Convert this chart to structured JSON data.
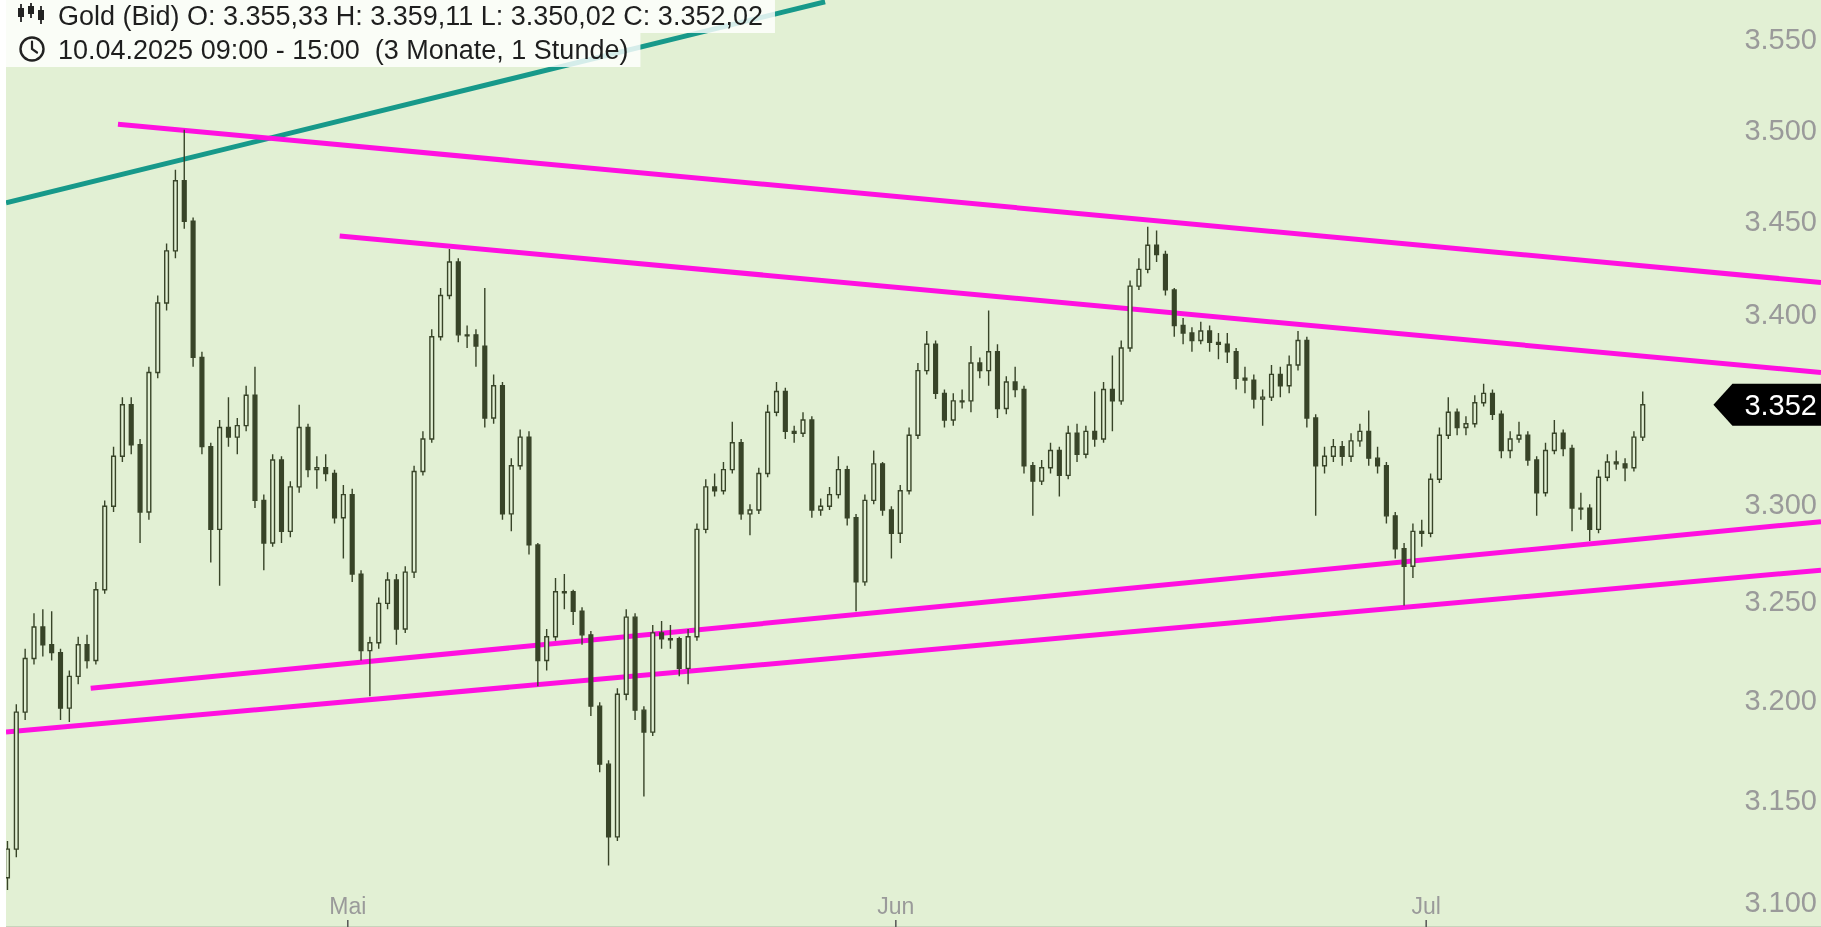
{
  "chart_data": {
    "type": "candlestick",
    "title": "Gold (Bid) O: 3.355,33 H: 3.359,11 L: 3.350,02 C: 3.352,02",
    "subtitle": "10.04.2025 09:00 - 15:00  (3 Monate, 1 Stunde)",
    "color": "#384428",
    "log": true,
    "xlim": [
      "2025-04-11T16:00",
      "2025-07-23T08:00"
    ],
    "xticks": [
      {
        "value": "2025-05-01",
        "label": "Mai"
      },
      {
        "value": "2025-06-01",
        "label": "Jun"
      },
      {
        "value": "2025-07-01",
        "label": "Jul"
      }
    ],
    "ylim": [
      3088,
      3572
    ],
    "yticks": [
      {
        "value": 3100,
        "label": "3.100"
      },
      {
        "value": 3150,
        "label": "3.150"
      },
      {
        "value": 3200,
        "label": "3.200"
      },
      {
        "value": 3250,
        "label": "3.250"
      },
      {
        "value": 3300,
        "label": "3.300"
      },
      {
        "value": 3400,
        "label": "3.400"
      },
      {
        "value": 3450,
        "label": "3.450"
      },
      {
        "value": 3500,
        "label": "3.500"
      },
      {
        "value": 3550,
        "label": "3.550"
      }
    ],
    "x": [
      "2025-04-11T18:00",
      "2025-04-12T06:00",
      "2025-04-12T18:00",
      "2025-04-13T06:00",
      "2025-04-13T18:00",
      "2025-04-14T06:00",
      "2025-04-14T18:00",
      "2025-04-15T06:00",
      "2025-04-15T18:00",
      "2025-04-16T06:00",
      "2025-04-16T18:00",
      "2025-04-17T06:00",
      "2025-04-17T18:00",
      "2025-04-18T06:00",
      "2025-04-18T18:00",
      "2025-04-19T06:00",
      "2025-04-19T18:00",
      "2025-04-20T06:00",
      "2025-04-20T18:00",
      "2025-04-21T06:00",
      "2025-04-21T18:00",
      "2025-04-22T06:00",
      "2025-04-22T18:00",
      "2025-04-23T06:00",
      "2025-04-23T18:00",
      "2025-04-24T06:00",
      "2025-04-24T18:00",
      "2025-04-25T06:00",
      "2025-04-25T18:00",
      "2025-04-26T06:00",
      "2025-04-26T18:00",
      "2025-04-27T06:00",
      "2025-04-27T18:00",
      "2025-04-28T06:00",
      "2025-04-28T18:00",
      "2025-04-29T06:00",
      "2025-04-29T18:00",
      "2025-04-30T06:00",
      "2025-04-30T18:00",
      "2025-05-01T06:00",
      "2025-05-01T18:00",
      "2025-05-02T06:00",
      "2025-05-02T18:00",
      "2025-05-03T06:00",
      "2025-05-03T18:00",
      "2025-05-04T06:00",
      "2025-05-04T18:00",
      "2025-05-05T06:00",
      "2025-05-05T18:00",
      "2025-05-06T06:00",
      "2025-05-06T18:00",
      "2025-05-07T06:00",
      "2025-05-07T18:00",
      "2025-05-08T06:00",
      "2025-05-08T18:00",
      "2025-05-09T06:00",
      "2025-05-09T18:00",
      "2025-05-10T06:00",
      "2025-05-10T18:00",
      "2025-05-11T06:00",
      "2025-05-11T18:00",
      "2025-05-12T06:00",
      "2025-05-12T18:00",
      "2025-05-13T06:00",
      "2025-05-13T18:00",
      "2025-05-14T06:00",
      "2025-05-14T18:00",
      "2025-05-15T06:00",
      "2025-05-15T18:00",
      "2025-05-16T06:00",
      "2025-05-16T18:00",
      "2025-05-17T06:00",
      "2025-05-17T18:00",
      "2025-05-18T06:00",
      "2025-05-18T18:00",
      "2025-05-19T06:00",
      "2025-05-19T18:00",
      "2025-05-20T06:00",
      "2025-05-20T18:00",
      "2025-05-21T06:00",
      "2025-05-21T18:00",
      "2025-05-22T06:00",
      "2025-05-22T18:00",
      "2025-05-23T06:00",
      "2025-05-23T18:00",
      "2025-05-24T06:00",
      "2025-05-24T18:00",
      "2025-05-25T06:00",
      "2025-05-25T18:00",
      "2025-05-26T06:00",
      "2025-05-26T18:00",
      "2025-05-27T06:00",
      "2025-05-27T18:00",
      "2025-05-28T06:00",
      "2025-05-28T18:00",
      "2025-05-29T06:00",
      "2025-05-29T18:00",
      "2025-05-30T06:00",
      "2025-05-30T18:00",
      "2025-05-31T06:00",
      "2025-05-31T18:00",
      "2025-06-01T06:00",
      "2025-06-01T18:00",
      "2025-06-02T06:00",
      "2025-06-02T18:00",
      "2025-06-03T06:00",
      "2025-06-03T18:00",
      "2025-06-04T06:00",
      "2025-06-04T18:00",
      "2025-06-05T06:00",
      "2025-06-05T18:00",
      "2025-06-06T06:00",
      "2025-06-06T18:00",
      "2025-06-07T06:00",
      "2025-06-07T18:00",
      "2025-06-08T06:00",
      "2025-06-08T18:00",
      "2025-06-09T06:00",
      "2025-06-09T18:00",
      "2025-06-10T06:00",
      "2025-06-10T18:00",
      "2025-06-11T06:00",
      "2025-06-11T18:00",
      "2025-06-12T06:00",
      "2025-06-12T18:00",
      "2025-06-13T06:00",
      "2025-06-13T18:00",
      "2025-06-14T06:00",
      "2025-06-14T18:00",
      "2025-06-15T06:00",
      "2025-06-15T18:00",
      "2025-06-16T06:00",
      "2025-06-16T18:00",
      "2025-06-17T06:00",
      "2025-06-17T18:00",
      "2025-06-18T06:00",
      "2025-06-18T18:00",
      "2025-06-19T06:00",
      "2025-06-19T18:00",
      "2025-06-20T06:00",
      "2025-06-20T18:00",
      "2025-06-21T06:00",
      "2025-06-21T18:00",
      "2025-06-22T06:00",
      "2025-06-22T18:00",
      "2025-06-23T06:00",
      "2025-06-23T18:00",
      "2025-06-24T06:00",
      "2025-06-24T18:00",
      "2025-06-25T06:00",
      "2025-06-25T18:00",
      "2025-06-26T06:00",
      "2025-06-26T18:00",
      "2025-06-27T06:00",
      "2025-06-27T18:00",
      "2025-06-28T06:00",
      "2025-06-28T18:00",
      "2025-06-29T06:00",
      "2025-06-29T18:00",
      "2025-06-30T06:00",
      "2025-06-30T18:00",
      "2025-07-01T06:00",
      "2025-07-01T18:00",
      "2025-07-02T06:00",
      "2025-07-02T18:00",
      "2025-07-03T06:00",
      "2025-07-03T18:00",
      "2025-07-04T06:00",
      "2025-07-04T18:00",
      "2025-07-05T06:00",
      "2025-07-05T18:00",
      "2025-07-06T06:00",
      "2025-07-06T18:00",
      "2025-07-07T06:00",
      "2025-07-07T18:00",
      "2025-07-08T06:00",
      "2025-07-08T18:00",
      "2025-07-09T06:00",
      "2025-07-09T18:00",
      "2025-07-10T06:00",
      "2025-07-10T18:00",
      "2025-07-11T06:00",
      "2025-07-11T18:00",
      "2025-07-12T06:00",
      "2025-07-12T18:00",
      "2025-07-13T06:00"
    ],
    "ohlc": [
      [
        3112,
        3130,
        3106,
        3126
      ],
      [
        3126,
        3198,
        3122,
        3194
      ],
      [
        3194,
        3226,
        3190,
        3221
      ],
      [
        3221,
        3244,
        3218,
        3237
      ],
      [
        3237,
        3246,
        3222,
        3228
      ],
      [
        3228,
        3245,
        3220,
        3224
      ],
      [
        3224,
        3226,
        3190,
        3196
      ],
      [
        3196,
        3215,
        3189,
        3212
      ],
      [
        3212,
        3232,
        3208,
        3228
      ],
      [
        3228,
        3233,
        3216,
        3220
      ],
      [
        3220,
        3260,
        3218,
        3256
      ],
      [
        3256,
        3302,
        3254,
        3299
      ],
      [
        3299,
        3330,
        3296,
        3325
      ],
      [
        3325,
        3356,
        3322,
        3352
      ],
      [
        3352,
        3356,
        3326,
        3331
      ],
      [
        3331,
        3334,
        3280,
        3296
      ],
      [
        3296,
        3372,
        3292,
        3369
      ],
      [
        3369,
        3410,
        3366,
        3406
      ],
      [
        3406,
        3438,
        3402,
        3434
      ],
      [
        3434,
        3478,
        3430,
        3472
      ],
      [
        3472,
        3500,
        3446,
        3450
      ],
      [
        3450,
        3452,
        3372,
        3377
      ],
      [
        3377,
        3380,
        3326,
        3330
      ],
      [
        3330,
        3332,
        3270,
        3287
      ],
      [
        3287,
        3344,
        3258,
        3340
      ],
      [
        3340,
        3356,
        3330,
        3335
      ],
      [
        3335,
        3345,
        3326,
        3341
      ],
      [
        3341,
        3362,
        3338,
        3357
      ],
      [
        3357,
        3372,
        3298,
        3302
      ],
      [
        3302,
        3305,
        3266,
        3280
      ],
      [
        3280,
        3326,
        3278,
        3323
      ],
      [
        3323,
        3325,
        3280,
        3286
      ],
      [
        3286,
        3312,
        3283,
        3309
      ],
      [
        3309,
        3352,
        3306,
        3340
      ],
      [
        3340,
        3342,
        3314,
        3318
      ],
      [
        3318,
        3325,
        3308,
        3319
      ],
      [
        3319,
        3326,
        3312,
        3316
      ],
      [
        3316,
        3318,
        3290,
        3293
      ],
      [
        3293,
        3310,
        3272,
        3305
      ],
      [
        3305,
        3308,
        3260,
        3264
      ],
      [
        3264,
        3266,
        3220,
        3225
      ],
      [
        3225,
        3232,
        3202,
        3229
      ],
      [
        3229,
        3252,
        3226,
        3249
      ],
      [
        3249,
        3265,
        3246,
        3261
      ],
      [
        3261,
        3264,
        3228,
        3236
      ],
      [
        3236,
        3268,
        3234,
        3265
      ],
      [
        3265,
        3320,
        3262,
        3317
      ],
      [
        3317,
        3338,
        3315,
        3334
      ],
      [
        3334,
        3392,
        3332,
        3388
      ],
      [
        3388,
        3414,
        3386,
        3410
      ],
      [
        3410,
        3435,
        3408,
        3428
      ],
      [
        3428,
        3430,
        3385,
        3389
      ],
      [
        3389,
        3394,
        3382,
        3389
      ],
      [
        3389,
        3392,
        3372,
        3383
      ],
      [
        3383,
        3414,
        3340,
        3345
      ],
      [
        3345,
        3368,
        3342,
        3362
      ],
      [
        3362,
        3364,
        3292,
        3295
      ],
      [
        3295,
        3324,
        3286,
        3320
      ],
      [
        3320,
        3339,
        3318,
        3335
      ],
      [
        3335,
        3338,
        3274,
        3279
      ],
      [
        3279,
        3280,
        3207,
        3220
      ],
      [
        3220,
        3236,
        3215,
        3232
      ],
      [
        3232,
        3262,
        3230,
        3255
      ],
      [
        3255,
        3264,
        3246,
        3255
      ],
      [
        3255,
        3256,
        3238,
        3245
      ],
      [
        3245,
        3247,
        3228,
        3233
      ],
      [
        3233,
        3235,
        3192,
        3197
      ],
      [
        3197,
        3199,
        3164,
        3168
      ],
      [
        3168,
        3170,
        3118,
        3132
      ],
      [
        3132,
        3206,
        3130,
        3203
      ],
      [
        3203,
        3246,
        3200,
        3242
      ],
      [
        3242,
        3244,
        3190,
        3195
      ],
      [
        3195,
        3197,
        3152,
        3184
      ],
      [
        3184,
        3238,
        3182,
        3234
      ],
      [
        3234,
        3240,
        3226,
        3231
      ],
      [
        3231,
        3238,
        3226,
        3231
      ],
      [
        3231,
        3232,
        3212,
        3216
      ],
      [
        3216,
        3236,
        3208,
        3232
      ],
      [
        3232,
        3290,
        3230,
        3287
      ],
      [
        3287,
        3313,
        3285,
        3309
      ],
      [
        3309,
        3316,
        3304,
        3307
      ],
      [
        3307,
        3322,
        3305,
        3318
      ],
      [
        3318,
        3343,
        3316,
        3332
      ],
      [
        3332,
        3334,
        3292,
        3295
      ],
      [
        3295,
        3300,
        3284,
        3297
      ],
      [
        3297,
        3319,
        3295,
        3316
      ],
      [
        3316,
        3352,
        3314,
        3348
      ],
      [
        3348,
        3364,
        3346,
        3359
      ],
      [
        3359,
        3361,
        3334,
        3338
      ],
      [
        3338,
        3341,
        3332,
        3337
      ],
      [
        3337,
        3348,
        3335,
        3344
      ],
      [
        3344,
        3346,
        3293,
        3297
      ],
      [
        3297,
        3303,
        3294,
        3299
      ],
      [
        3299,
        3309,
        3297,
        3305
      ],
      [
        3305,
        3325,
        3303,
        3318
      ],
      [
        3318,
        3320,
        3289,
        3293
      ],
      [
        3293,
        3295,
        3245,
        3260
      ],
      [
        3260,
        3305,
        3258,
        3302
      ],
      [
        3302,
        3328,
        3300,
        3321
      ],
      [
        3321,
        3322,
        3294,
        3297
      ],
      [
        3297,
        3299,
        3272,
        3285
      ],
      [
        3285,
        3310,
        3280,
        3307
      ],
      [
        3307,
        3340,
        3305,
        3336
      ],
      [
        3336,
        3374,
        3334,
        3370
      ],
      [
        3370,
        3391,
        3368,
        3384
      ],
      [
        3384,
        3386,
        3355,
        3358
      ],
      [
        3358,
        3360,
        3340,
        3344
      ],
      [
        3344,
        3358,
        3341,
        3354
      ],
      [
        3354,
        3360,
        3350,
        3354
      ],
      [
        3354,
        3383,
        3348,
        3374
      ],
      [
        3374,
        3377,
        3366,
        3370
      ],
      [
        3370,
        3402,
        3362,
        3380
      ],
      [
        3380,
        3384,
        3345,
        3350
      ],
      [
        3350,
        3367,
        3347,
        3364
      ],
      [
        3364,
        3372,
        3356,
        3360
      ],
      [
        3360,
        3362,
        3316,
        3320
      ],
      [
        3320,
        3322,
        3294,
        3312
      ],
      [
        3312,
        3323,
        3310,
        3319
      ],
      [
        3319,
        3332,
        3316,
        3328
      ],
      [
        3328,
        3330,
        3304,
        3315
      ],
      [
        3315,
        3341,
        3313,
        3337
      ],
      [
        3337,
        3342,
        3322,
        3326
      ],
      [
        3326,
        3341,
        3324,
        3338
      ],
      [
        3338,
        3359,
        3330,
        3334
      ],
      [
        3334,
        3364,
        3332,
        3360
      ],
      [
        3360,
        3378,
        3338,
        3354
      ],
      [
        3354,
        3386,
        3352,
        3382
      ],
      [
        3382,
        3418,
        3380,
        3415
      ],
      [
        3415,
        3430,
        3413,
        3424
      ],
      [
        3424,
        3447,
        3422,
        3437
      ],
      [
        3437,
        3445,
        3428,
        3432
      ],
      [
        3432,
        3434,
        3410,
        3413
      ],
      [
        3413,
        3414,
        3388,
        3394
      ],
      [
        3394,
        3398,
        3384,
        3390
      ],
      [
        3390,
        3393,
        3380,
        3386
      ],
      [
        3386,
        3396,
        3384,
        3391
      ],
      [
        3391,
        3394,
        3380,
        3385
      ],
      [
        3385,
        3390,
        3376,
        3384
      ],
      [
        3384,
        3390,
        3374,
        3380
      ],
      [
        3380,
        3382,
        3360,
        3366
      ],
      [
        3366,
        3372,
        3358,
        3365
      ],
      [
        3365,
        3368,
        3350,
        3355
      ],
      [
        3355,
        3360,
        3341,
        3356
      ],
      [
        3356,
        3373,
        3354,
        3368
      ],
      [
        3368,
        3372,
        3356,
        3362
      ],
      [
        3362,
        3378,
        3358,
        3373
      ],
      [
        3373,
        3391,
        3370,
        3386
      ],
      [
        3386,
        3388,
        3340,
        3345
      ],
      [
        3345,
        3347,
        3294,
        3320
      ],
      [
        3320,
        3330,
        3316,
        3325
      ],
      [
        3325,
        3334,
        3322,
        3330
      ],
      [
        3330,
        3333,
        3320,
        3325
      ],
      [
        3325,
        3337,
        3322,
        3333
      ],
      [
        3333,
        3342,
        3330,
        3338
      ],
      [
        3338,
        3349,
        3320,
        3324
      ],
      [
        3324,
        3330,
        3316,
        3320
      ],
      [
        3320,
        3322,
        3290,
        3294
      ],
      [
        3294,
        3296,
        3272,
        3277
      ],
      [
        3277,
        3280,
        3248,
        3268
      ],
      [
        3268,
        3290,
        3262,
        3286
      ],
      [
        3286,
        3292,
        3278,
        3285
      ],
      [
        3285,
        3316,
        3283,
        3313
      ],
      [
        3313,
        3340,
        3311,
        3336
      ],
      [
        3336,
        3356,
        3334,
        3348
      ],
      [
        3348,
        3350,
        3336,
        3340
      ],
      [
        3340,
        3346,
        3336,
        3342
      ],
      [
        3342,
        3357,
        3340,
        3353
      ],
      [
        3353,
        3363,
        3351,
        3358
      ],
      [
        3358,
        3360,
        3344,
        3347
      ],
      [
        3347,
        3349,
        3324,
        3328
      ],
      [
        3328,
        3338,
        3324,
        3334
      ],
      [
        3334,
        3343,
        3332,
        3336
      ],
      [
        3336,
        3338,
        3320,
        3323
      ],
      [
        3323,
        3325,
        3294,
        3306
      ],
      [
        3306,
        3332,
        3304,
        3328
      ],
      [
        3328,
        3344,
        3326,
        3337
      ],
      [
        3337,
        3339,
        3325,
        3329
      ],
      [
        3329,
        3331,
        3286,
        3298
      ],
      [
        3298,
        3306,
        3292,
        3298
      ],
      [
        3298,
        3300,
        3281,
        3287
      ],
      [
        3287,
        3318,
        3285,
        3314
      ],
      [
        3314,
        3326,
        3312,
        3322
      ],
      [
        3322,
        3328,
        3318,
        3321
      ],
      [
        3321,
        3324,
        3312,
        3319
      ],
      [
        3319,
        3338,
        3317,
        3335
      ],
      [
        3335,
        3359,
        3333,
        3352
      ]
    ],
    "series": [
      {
        "type": "line",
        "x": [
          "2025-04-11T16:00",
          "2025-05-28"
        ],
        "values": [
          3460,
          3571
        ],
        "color": "#17998a"
      },
      {
        "type": "line",
        "x": [
          "2025-04-18",
          "2025-07-23T08:00"
        ],
        "values": [
          3503,
          3417
        ],
        "color": "#ff10e0"
      },
      {
        "type": "line",
        "x": [
          "2025-04-30T13:00",
          "2025-07-23T08:00"
        ],
        "values": [
          3442,
          3369
        ],
        "color": "#ff10e0"
      },
      {
        "type": "line",
        "x": [
          "2025-04-16T11:00",
          "2025-07-23T08:00"
        ],
        "values": [
          3206,
          3291
        ],
        "color": "#ff10e0"
      },
      {
        "type": "line",
        "x": [
          "2025-04-11T16:00",
          "2025-07-23T08:00"
        ],
        "values": [
          3184,
          3266
        ],
        "color": "#ff10e0"
      }
    ],
    "annotations": [
      "3.352"
    ]
  }
}
